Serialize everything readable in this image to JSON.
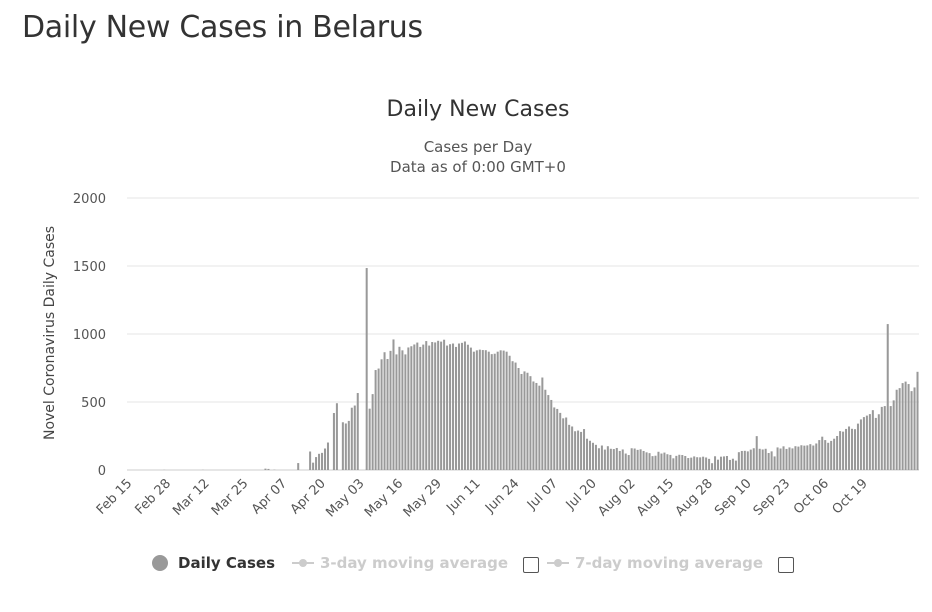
{
  "page": {
    "title": "Daily New Cases in Belarus"
  },
  "chart_data": {
    "type": "bar",
    "title": "Daily New Cases",
    "subtitle": "Cases per Day",
    "subtitle2": "Data as of 0:00 GMT+0",
    "ylabel": "Novel Coronavirus Daily Cases",
    "xlabel": "",
    "ylim": [
      0,
      2000
    ],
    "yticks": [
      0,
      500,
      1000,
      1500,
      2000
    ],
    "grid": true,
    "bar_color": "#999999",
    "xticks": [
      "Feb 15",
      "Feb 28",
      "Mar 12",
      "Mar 25",
      "Apr 07",
      "Apr 20",
      "May 03",
      "May 16",
      "May 29",
      "Jun 11",
      "Jun 24",
      "Jul 07",
      "Jul 20",
      "Aug 02",
      "Aug 15",
      "Aug 28",
      "Sep 10",
      "Sep 23",
      "Oct 06",
      "Oct 19"
    ],
    "start_date": "Feb 15",
    "series": [
      {
        "name": "Daily Cases",
        "values": [
          0,
          0,
          0,
          0,
          0,
          0,
          0,
          0,
          0,
          0,
          0,
          0,
          1,
          0,
          0,
          0,
          0,
          0,
          0,
          0,
          0,
          0,
          0,
          0,
          0,
          1,
          0,
          0,
          0,
          0,
          0,
          0,
          0,
          0,
          0,
          0,
          0,
          0,
          0,
          0,
          0,
          0,
          0,
          0,
          0,
          0,
          10,
          8,
          0,
          2,
          0,
          0,
          0,
          0,
          0,
          0,
          0,
          51,
          0,
          0,
          0,
          136,
          54,
          95,
          119,
          126,
          158,
          202,
          0,
          419,
          491,
          0,
          351,
          342,
          361,
          458,
          474,
          566,
          0,
          0,
          1485,
          451,
          558,
          735,
          746,
          814,
          866,
          816,
          876,
          960,
          850,
          906,
          880,
          850,
          901,
          910,
          923,
          937,
          905,
          922,
          948,
          915,
          941,
          938,
          950,
          944,
          958,
          915,
          925,
          930,
          905,
          930,
          935,
          945,
          921,
          900,
          870,
          880,
          885,
          882,
          881,
          870,
          852,
          855,
          870,
          880,
          878,
          870,
          840,
          800,
          790,
          750,
          706,
          725,
          715,
          690,
          651,
          640,
          620,
          680,
          590,
          551,
          515,
          460,
          449,
          420,
          380,
          386,
          332,
          320,
          285,
          290,
          280,
          301,
          230,
          215,
          200,
          185,
          160,
          180,
          150,
          175,
          156,
          154,
          162,
          140,
          151,
          121,
          110,
          160,
          158,
          148,
          152,
          140,
          130,
          124,
          102,
          105,
          134,
          121,
          128,
          116,
          111,
          86,
          104,
          112,
          110,
          103,
          88,
          91,
          100,
          94,
          93,
          98,
          92,
          82,
          50,
          101,
          76,
          98,
          100,
          103,
          74,
          83,
          69,
          131,
          140,
          141,
          137,
          150,
          160,
          249,
          156,
          151,
          156,
          125,
          137,
          100,
          166,
          158,
          174,
          155,
          166,
          159,
          175,
          172,
          182,
          179,
          181,
          190,
          180,
          195,
          220,
          245,
          220,
          200,
          214,
          230,
          250,
          286,
          282,
          302,
          320,
          303,
          300,
          341,
          372,
          389,
          400,
          411,
          440,
          383,
          410,
          464,
          470,
          1073,
          470,
          512,
          590,
          602,
          639,
          650,
          632,
          580,
          607,
          722
        ]
      }
    ],
    "legend": [
      {
        "label": "Daily Cases",
        "active": true,
        "color": "#999999"
      },
      {
        "label": "3-day moving average",
        "active": false,
        "color": "#cccccc"
      },
      {
        "label": "7-day moving average",
        "active": false,
        "color": "#cccccc"
      }
    ],
    "legend_placement": "bottom"
  }
}
